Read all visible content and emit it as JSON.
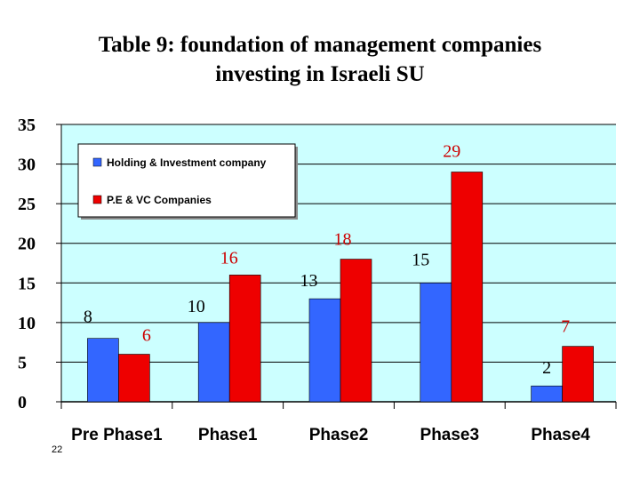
{
  "title_line1": "Table 9: foundation of management companies",
  "title_line2": "investing in Israeli SU",
  "page_number": "22",
  "colors": {
    "plot_background": "#ccffff",
    "series_blue": "#3366ff",
    "series_red": "#ee0000",
    "label_blue_series": "#000000",
    "label_red_series": "#cc0000"
  },
  "chart_data": {
    "type": "bar",
    "title": "Table 9: foundation of management companies investing in Israeli SU",
    "categories": [
      "Pre Phase1",
      "Phase1",
      "Phase2",
      "Phase3",
      "Phase4"
    ],
    "series": [
      {
        "name": "Holding & Investment company",
        "values": [
          8,
          10,
          13,
          15,
          2
        ]
      },
      {
        "name": "P.E & VC Companies",
        "values": [
          6,
          16,
          18,
          29,
          7
        ]
      }
    ],
    "ylim": [
      0,
      35
    ],
    "yticks": [
      "0",
      "5",
      "10",
      "15",
      "20",
      "25",
      "30",
      "35"
    ],
    "grid": true,
    "legend": "top-left"
  }
}
